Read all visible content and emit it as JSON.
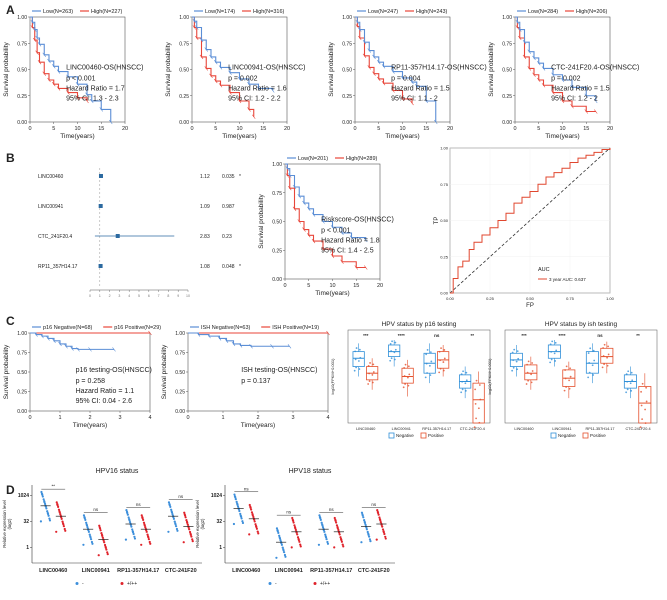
{
  "colors": {
    "low": "#5b8ed6",
    "high": "#e8463a",
    "neg": "#2f8fd8",
    "pos": "#e4502c",
    "pt_neg": "#3d8fdb",
    "pt_pos": "#e0232b",
    "forest": "#2c6aa0",
    "roc": "#e0472f"
  },
  "panel_labels": [
    "A",
    "B",
    "C",
    "D"
  ],
  "chart_data": [
    {
      "type": "line",
      "kind": "km",
      "panel": "A1",
      "title": "LINC00460-OS(HNSCC)",
      "legend": [
        {
          "name": "Low(N=263)",
          "series": "low"
        },
        {
          "name": "High(N=227)",
          "series": "high"
        }
      ],
      "stats": [
        "p < 0.001",
        "Hazard Ratio = 1.7",
        "95% CI: 1.3 - 2.3"
      ],
      "xlabel": "Time(years)",
      "ylabel": "Survival probability",
      "xlim": [
        0,
        20
      ],
      "ylim": [
        0,
        1
      ],
      "xticks": [
        0,
        5,
        10,
        15,
        20
      ],
      "yticks": [
        0,
        0.25,
        0.5,
        0.75,
        1.0
      ],
      "series": [
        {
          "name": "low",
          "x": [
            0,
            0.5,
            1,
            1.5,
            2,
            3,
            4,
            5,
            6,
            8,
            10,
            12,
            13,
            15,
            17
          ],
          "y": [
            1,
            0.95,
            0.88,
            0.8,
            0.74,
            0.64,
            0.58,
            0.53,
            0.48,
            0.43,
            0.36,
            0.26,
            0.2,
            0.12,
            0.0
          ]
        },
        {
          "name": "high",
          "x": [
            0,
            0.5,
            1,
            1.5,
            2,
            3,
            4,
            5,
            6,
            8,
            10,
            12
          ],
          "y": [
            1,
            0.9,
            0.78,
            0.66,
            0.57,
            0.46,
            0.4,
            0.36,
            0.32,
            0.28,
            0.23,
            0.2
          ]
        }
      ]
    },
    {
      "type": "line",
      "kind": "km",
      "panel": "A2",
      "title": "LINC00941-OS(HNSCC)",
      "legend": [
        {
          "name": "Low(N=174)",
          "series": "low"
        },
        {
          "name": "High(N=316)",
          "series": "high"
        }
      ],
      "stats": [
        "p = 0.002",
        "Hazard Ratio = 1.6",
        "95% CI: 1.2 - 2.2"
      ],
      "xlabel": "Time(years)",
      "ylabel": "Survival probability",
      "xlim": [
        0,
        20
      ],
      "ylim": [
        0,
        1
      ],
      "xticks": [
        0,
        5,
        10,
        15,
        20
      ],
      "yticks": [
        0,
        0.25,
        0.5,
        0.75,
        1.0
      ],
      "series": [
        {
          "name": "low",
          "x": [
            0,
            0.5,
            1,
            2,
            3,
            4,
            5,
            6,
            8,
            10,
            12,
            14,
            17
          ],
          "y": [
            1,
            0.96,
            0.9,
            0.78,
            0.69,
            0.62,
            0.57,
            0.52,
            0.47,
            0.41,
            0.36,
            0.32,
            0.3
          ]
        },
        {
          "name": "high",
          "x": [
            0,
            0.5,
            1,
            2,
            3,
            4,
            5,
            6,
            8,
            10,
            12,
            13
          ],
          "y": [
            1,
            0.9,
            0.8,
            0.62,
            0.51,
            0.44,
            0.39,
            0.35,
            0.28,
            0.2,
            0.12,
            0.05
          ]
        }
      ]
    },
    {
      "type": "line",
      "kind": "km",
      "panel": "A3",
      "title": "RP11-357H14.17-OS(HNSCC)",
      "legend": [
        {
          "name": "Low(N=247)",
          "series": "low"
        },
        {
          "name": "High(N=243)",
          "series": "high"
        }
      ],
      "stats": [
        "p = 0.004",
        "Hazard Ratio = 1.5",
        "95% CI: 1.1 - 2"
      ],
      "xlabel": "Time(years)",
      "ylabel": "Survival probability",
      "xlim": [
        0,
        20
      ],
      "ylim": [
        0,
        1
      ],
      "xticks": [
        0,
        5,
        10,
        15,
        20
      ],
      "yticks": [
        0,
        0.25,
        0.5,
        0.75,
        1.0
      ],
      "series": [
        {
          "name": "low",
          "x": [
            0,
            0.5,
            1,
            2,
            3,
            4,
            5,
            6,
            8,
            10,
            12,
            13,
            15,
            17
          ],
          "y": [
            1,
            0.95,
            0.88,
            0.76,
            0.68,
            0.62,
            0.57,
            0.53,
            0.48,
            0.42,
            0.38,
            0.34,
            0.2,
            0.0
          ]
        },
        {
          "name": "high",
          "x": [
            0,
            0.5,
            1,
            2,
            3,
            4,
            5,
            6,
            8,
            10,
            12
          ],
          "y": [
            1,
            0.91,
            0.8,
            0.63,
            0.52,
            0.46,
            0.41,
            0.37,
            0.3,
            0.22,
            0.18
          ]
        }
      ]
    },
    {
      "type": "line",
      "kind": "km",
      "panel": "A4",
      "title": "CTC-241F20.4-OS(HNSCC)",
      "legend": [
        {
          "name": "Low(N=284)",
          "series": "low"
        },
        {
          "name": "High(N=206)",
          "series": "high"
        }
      ],
      "stats": [
        "p = 0.002",
        "Hazard Ratio = 1.5",
        "95% CI: 1.2 - 2"
      ],
      "xlabel": "Time(years)",
      "ylabel": "Survival probability",
      "xlim": [
        0,
        20
      ],
      "ylim": [
        0,
        1
      ],
      "xticks": [
        0,
        5,
        10,
        15,
        20
      ],
      "yticks": [
        0,
        0.25,
        0.5,
        0.75,
        1.0
      ],
      "series": [
        {
          "name": "low",
          "x": [
            0,
            0.5,
            1,
            2,
            3,
            4,
            5,
            6,
            8,
            10,
            12,
            15,
            17
          ],
          "y": [
            1,
            0.95,
            0.88,
            0.76,
            0.67,
            0.61,
            0.56,
            0.51,
            0.45,
            0.4,
            0.33,
            0.25,
            0.2
          ]
        },
        {
          "name": "high",
          "x": [
            0,
            0.5,
            1,
            2,
            3,
            4,
            5,
            6,
            8,
            10,
            12,
            15,
            17
          ],
          "y": [
            1,
            0.9,
            0.8,
            0.62,
            0.51,
            0.45,
            0.4,
            0.35,
            0.28,
            0.2,
            0.15,
            0.1,
            0.1
          ]
        }
      ]
    },
    {
      "type": "scatter",
      "kind": "forest",
      "panel": "B1",
      "rows": [
        {
          "label": "LINC00460",
          "hr": 1.12,
          "lo": 1.06,
          "hi": 1.18,
          "hr_text": "1.12",
          "p_text": "0.035",
          "star": "*"
        },
        {
          "label": "LINC00941",
          "hr": 1.09,
          "lo": 1.0,
          "hi": 1.17,
          "hr_text": "1.09",
          "p_text": "0.987",
          "star": ""
        },
        {
          "label": "CTC_241F20.4",
          "hr": 2.83,
          "lo": 0.5,
          "hi": 8.6,
          "hr_text": "2.83",
          "p_text": "0.23",
          "star": ""
        },
        {
          "label": "RP11_357H14.17",
          "hr": 1.08,
          "lo": 1.03,
          "hi": 1.14,
          "hr_text": "1.08",
          "p_text": "0.048",
          "star": "*"
        }
      ],
      "xlim": [
        0,
        10
      ],
      "xticks": [
        "0",
        "1",
        "2",
        "3",
        "4",
        "5",
        "6",
        "7",
        "8",
        "9",
        "10"
      ]
    },
    {
      "type": "line",
      "kind": "km",
      "panel": "B2",
      "title": "Riskscore-OS(HNSCC)",
      "legend": [
        {
          "name": "Low(N=201)",
          "series": "low"
        },
        {
          "name": "High(N=289)",
          "series": "high"
        }
      ],
      "stats": [
        "p < 0.001",
        "Hazard Ratio = 1.8",
        "95% CI: 1.4 - 2.5"
      ],
      "xlabel": "Time(years)",
      "ylabel": "Survival probability",
      "xlim": [
        0,
        20
      ],
      "ylim": [
        0,
        1
      ],
      "xticks": [
        0,
        5,
        10,
        15,
        20
      ],
      "yticks": [
        0,
        0.25,
        0.5,
        0.75,
        1.0
      ],
      "series": [
        {
          "name": "low",
          "x": [
            0,
            0.5,
            1,
            2,
            3,
            4,
            5,
            6,
            8,
            10,
            12,
            14,
            17
          ],
          "y": [
            1,
            0.96,
            0.9,
            0.8,
            0.72,
            0.66,
            0.61,
            0.56,
            0.5,
            0.45,
            0.4,
            0.36,
            0.34
          ]
        },
        {
          "name": "high",
          "x": [
            0,
            0.5,
            1,
            2,
            3,
            4,
            5,
            6,
            8,
            10,
            12,
            15,
            17
          ],
          "y": [
            1,
            0.9,
            0.79,
            0.61,
            0.5,
            0.43,
            0.38,
            0.33,
            0.26,
            0.2,
            0.15,
            0.1,
            0.1
          ]
        }
      ]
    },
    {
      "type": "line",
      "kind": "roc",
      "panel": "B3",
      "xlabel": "FP",
      "ylabel": "TP",
      "xlim": [
        0,
        1
      ],
      "ylim": [
        0,
        1
      ],
      "xticks": [
        "0.00",
        "0.25",
        "0.50",
        "0.75",
        "1.00"
      ],
      "yticks": [
        "0.00",
        "0.25",
        "0.50",
        "0.75",
        "1.00"
      ],
      "legend_title": "AUC",
      "legend_entry": "3 year AUC: 0.637",
      "series": [
        {
          "name": "roc",
          "x": [
            0,
            0.02,
            0.05,
            0.08,
            0.12,
            0.15,
            0.2,
            0.25,
            0.3,
            0.35,
            0.4,
            0.45,
            0.5,
            0.55,
            0.6,
            0.65,
            0.7,
            0.75,
            0.8,
            0.85,
            0.9,
            0.95,
            1.0
          ],
          "y": [
            0,
            0.1,
            0.18,
            0.22,
            0.3,
            0.35,
            0.4,
            0.45,
            0.5,
            0.55,
            0.62,
            0.66,
            0.7,
            0.75,
            0.8,
            0.83,
            0.86,
            0.9,
            0.93,
            0.95,
            0.97,
            0.99,
            1.0
          ]
        }
      ]
    },
    {
      "type": "line",
      "kind": "km",
      "panel": "C1",
      "title": "p16 testing-OS(HNSCC)",
      "legend": [
        {
          "name": "p16 Negative(N=68)",
          "series": "low"
        },
        {
          "name": "p16 Positive(N=29)",
          "series": "high"
        }
      ],
      "stats": [
        "p = 0.258",
        "Hazard Ratio = 1.1",
        "95% CI: 0.04 - 2.6"
      ],
      "xlabel": "Time(years)",
      "ylabel": "Survival probability",
      "xlim": [
        0,
        4
      ],
      "ylim": [
        0,
        1
      ],
      "xticks": [
        0,
        1,
        2,
        3,
        4
      ],
      "yticks": [
        0,
        0.25,
        0.5,
        0.75,
        1.0
      ],
      "series": [
        {
          "name": "low",
          "x": [
            0,
            0.2,
            0.4,
            0.6,
            0.8,
            1.0,
            1.2,
            1.4,
            1.6,
            2.0,
            2.8
          ],
          "y": [
            1,
            0.98,
            0.96,
            0.93,
            0.9,
            0.86,
            0.83,
            0.8,
            0.79,
            0.79,
            0.79
          ]
        },
        {
          "name": "high",
          "x": [
            0,
            4
          ],
          "y": [
            1,
            1
          ]
        }
      ]
    },
    {
      "type": "line",
      "kind": "km",
      "panel": "C2",
      "title": "ISH testing-OS(HNSCC)",
      "legend": [
        {
          "name": "ISH Negative(N=63)",
          "series": "low"
        },
        {
          "name": "ISH Positive(N=19)",
          "series": "high"
        }
      ],
      "stats": [
        "p = 0.137"
      ],
      "xlabel": "Time(years)",
      "ylabel": "Survival probability",
      "xlim": [
        0,
        4
      ],
      "ylim": [
        0,
        1
      ],
      "xticks": [
        0,
        1,
        2,
        3,
        4
      ],
      "yticks": [
        0,
        0.25,
        0.5,
        0.75,
        1.0
      ],
      "series": [
        {
          "name": "low",
          "x": [
            0,
            0.3,
            0.6,
            0.9,
            1.1,
            1.3,
            1.5,
            1.8,
            2.4,
            2.9
          ],
          "y": [
            1,
            0.98,
            0.96,
            0.93,
            0.9,
            0.86,
            0.84,
            0.83,
            0.83,
            0.83
          ]
        },
        {
          "name": "high",
          "x": [
            0,
            4
          ],
          "y": [
            1,
            1
          ]
        }
      ]
    },
    {
      "type": "bar",
      "kind": "box",
      "panel": "C3",
      "title": "HPV status by p16 testing",
      "ylabel": "log10(FPKM+0.001)",
      "categories": [
        "LINC00460",
        "LINC00941",
        "RP11-357H14.17",
        "CTC-241F20.4"
      ],
      "significance": [
        "***",
        "****",
        "ns",
        "**"
      ],
      "ylim": [
        -3,
        2
      ],
      "series": [
        {
          "name": "Negative",
          "q": [
            [
              -0.2,
              0.4,
              0.9,
              1.3,
              1.8
            ],
            [
              0.4,
              1.0,
              1.3,
              1.7,
              2.0
            ],
            [
              -0.6,
              0.0,
              0.6,
              1.2,
              1.8
            ],
            [
              -1.5,
              -0.9,
              -0.5,
              -0.1,
              0.4
            ]
          ]
        },
        {
          "name": "Positive",
          "q": [
            [
              -1.0,
              -0.4,
              0.0,
              0.4,
              0.9
            ],
            [
              -1.4,
              -0.6,
              -0.2,
              0.3,
              0.8
            ],
            [
              -0.2,
              0.3,
              0.8,
              1.3,
              1.7
            ],
            [
              -3.0,
              -3.0,
              -1.6,
              -0.6,
              0.1
            ]
          ]
        }
      ],
      "legend": [
        "Negative",
        "Positive"
      ]
    },
    {
      "type": "bar",
      "kind": "box",
      "panel": "C4",
      "title": "HPV status by ish testing",
      "ylabel": "log10(FPKM+0.001)",
      "categories": [
        "LINC00460",
        "LINC00941",
        "RP11-357H14.17",
        "CTC-241F20.4"
      ],
      "significance": [
        "***",
        "****",
        "ns",
        "**"
      ],
      "ylim": [
        -3,
        2
      ],
      "series": [
        {
          "name": "Negative",
          "q": [
            [
              -0.2,
              0.4,
              0.8,
              1.2,
              1.7
            ],
            [
              0.4,
              0.9,
              1.3,
              1.7,
              2.0
            ],
            [
              -0.6,
              0.0,
              0.6,
              1.3,
              1.8
            ],
            [
              -1.5,
              -0.9,
              -0.5,
              -0.1,
              0.4
            ]
          ]
        },
        {
          "name": "Positive",
          "q": [
            [
              -1.0,
              -0.4,
              0.0,
              0.5,
              1.0
            ],
            [
              -1.5,
              -0.8,
              -0.3,
              0.2,
              0.7
            ],
            [
              0.0,
              0.6,
              1.0,
              1.5,
              1.9
            ],
            [
              -3.0,
              -3.0,
              -1.8,
              -0.8,
              0.0
            ]
          ]
        }
      ],
      "legend": [
        "Negative",
        "Positive"
      ]
    },
    {
      "type": "scatter",
      "kind": "dot",
      "panel": "D1",
      "title": "HPV16 status",
      "ylabel": "Relative expression level\n(log2)",
      "categories": [
        "LINC00460",
        "LINC00941",
        "RP11-357H14.17",
        "CTC-241F20"
      ],
      "significance": [
        "**",
        "ns",
        "ns",
        "ns"
      ],
      "yticks": [
        "1024",
        "32",
        "1"
      ],
      "ylim": [
        -3,
        12
      ],
      "legend": [
        "-",
        "+/++"
      ],
      "series": [
        {
          "name": "-",
          "mean": [
            8.0,
            3.5,
            4.5,
            6.0
          ]
        },
        {
          "name": "+/++",
          "mean": [
            6.0,
            1.5,
            3.5,
            4.0
          ]
        }
      ]
    },
    {
      "type": "scatter",
      "kind": "dot",
      "panel": "D2",
      "title": "HPV18 status",
      "ylabel": "Relative expression level\n(log2)",
      "categories": [
        "LINC00460",
        "LINC00941",
        "RP11-357H14.17",
        "CTC-241F20"
      ],
      "significance": [
        "ns",
        "ns",
        "ns",
        "ns"
      ],
      "yticks": [
        "1024",
        "32",
        "1"
      ],
      "ylim": [
        -3,
        12
      ],
      "legend": [
        "-",
        "+/++"
      ],
      "series": [
        {
          "name": "-",
          "mean": [
            7.5,
            1.0,
            3.5,
            4.0
          ]
        },
        {
          "name": "+/++",
          "mean": [
            5.5,
            3.0,
            3.0,
            4.5
          ]
        }
      ]
    }
  ]
}
